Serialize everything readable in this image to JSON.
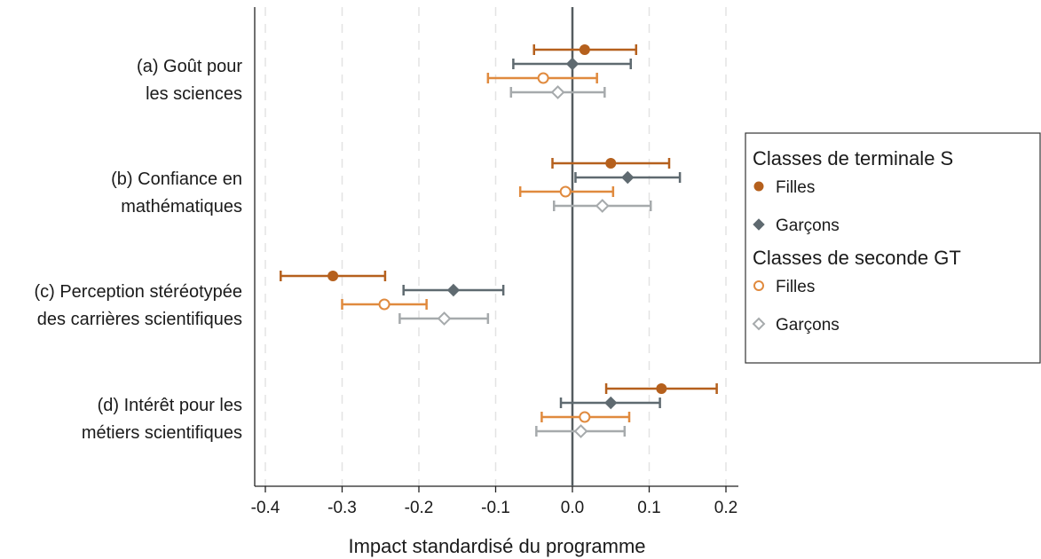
{
  "chart_data": {
    "type": "scatter",
    "subtype": "coefficient-plot-with-confidence-intervals",
    "xlabel": "Impact standardisé du programme",
    "xlim": [
      -0.4,
      0.2
    ],
    "xticks": [
      -0.4,
      -0.3,
      -0.2,
      -0.1,
      0.0,
      0.1,
      0.2
    ],
    "xtick_labels": [
      "-0.4",
      "-0.3",
      "-0.2",
      "-0.1",
      "0.0",
      "0.1",
      "0.2"
    ],
    "grid": "vertical dashed",
    "reference_line": 0,
    "legend_position": "right",
    "categories": [
      {
        "id": "a",
        "lines": [
          "(a) Goût pour",
          "les sciences"
        ]
      },
      {
        "id": "b",
        "lines": [
          "(b) Confiance en",
          "mathématiques"
        ]
      },
      {
        "id": "c",
        "lines": [
          "(c) Perception stéréotypée",
          "des carrières scientifiques"
        ]
      },
      {
        "id": "d",
        "lines": [
          "(d) Intérêt pour les",
          "métiers scientifiques"
        ]
      }
    ],
    "legend": {
      "groups": [
        {
          "title": "Classes de terminale S",
          "items": [
            "Filles",
            "Garçons"
          ]
        },
        {
          "title": "Classes de seconde GT",
          "items": [
            "Filles",
            "Garçons"
          ]
        }
      ]
    },
    "series": [
      {
        "group": "Classes de terminale S",
        "name": "Filles",
        "marker": "circle-filled",
        "color": "#b5601d",
        "values": [
          0.016,
          0.05,
          -0.312,
          0.116
        ],
        "ci_low": [
          -0.05,
          -0.026,
          -0.38,
          0.044
        ],
        "ci_high": [
          0.083,
          0.126,
          -0.244,
          0.188
        ]
      },
      {
        "group": "Classes de terminale S",
        "name": "Garçons",
        "marker": "diamond-filled",
        "color": "#5f6a70",
        "values": [
          0.0,
          0.072,
          -0.155,
          0.05
        ],
        "ci_low": [
          -0.077,
          0.004,
          -0.22,
          -0.015
        ],
        "ci_high": [
          0.076,
          0.14,
          -0.09,
          0.114
        ]
      },
      {
        "group": "Classes de seconde GT",
        "name": "Filles",
        "marker": "circle-hollow",
        "color": "#e08a3e",
        "values": [
          -0.038,
          -0.009,
          -0.245,
          0.016
        ],
        "ci_low": [
          -0.11,
          -0.068,
          -0.3,
          -0.04
        ],
        "ci_high": [
          0.032,
          0.053,
          -0.19,
          0.074
        ]
      },
      {
        "group": "Classes de seconde GT",
        "name": "Garçons",
        "marker": "diamond-hollow",
        "color": "#a6aaac",
        "values": [
          -0.019,
          0.039,
          -0.167,
          0.011
        ],
        "ci_low": [
          -0.08,
          -0.024,
          -0.225,
          -0.047
        ],
        "ci_high": [
          0.042,
          0.102,
          -0.11,
          0.068
        ]
      }
    ]
  }
}
